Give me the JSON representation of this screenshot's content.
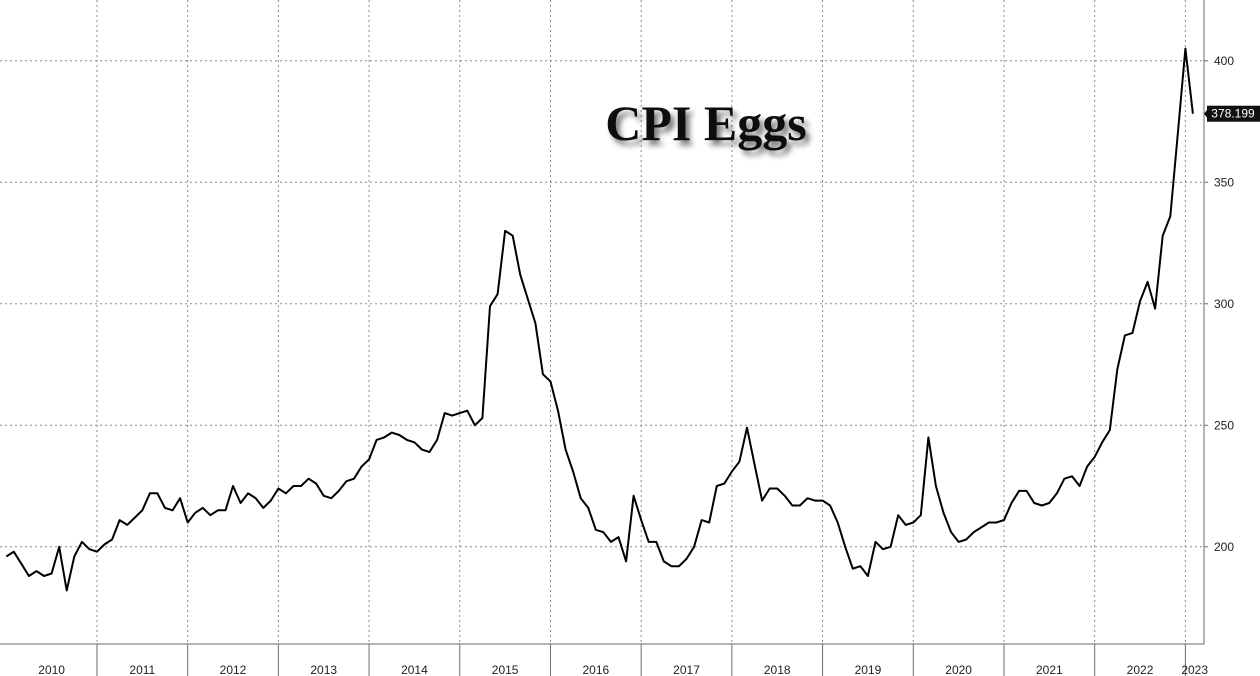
{
  "chart_data": {
    "type": "line",
    "title": "CPI Eggs",
    "xlabel": "",
    "ylabel": "",
    "x_tick_labels": [
      "2010",
      "2011",
      "2012",
      "2013",
      "2014",
      "2015",
      "2016",
      "2017",
      "2018",
      "2019",
      "2020",
      "2021",
      "2022",
      "2023"
    ],
    "y_ticks": [
      200,
      250,
      300,
      350,
      400
    ],
    "ylim": [
      160,
      425
    ],
    "xlim": [
      "2010-01",
      "2023-05"
    ],
    "grid": true,
    "last_value_label": "378.199",
    "colors": {
      "line": "#000000",
      "grid": "#8a8a8a",
      "last_label_bg": "#111111"
    },
    "series": [
      {
        "values": [
          [
            "2010-01",
            196
          ],
          [
            "2010-02",
            198
          ],
          [
            "2010-03",
            193
          ],
          [
            "2010-04",
            188
          ],
          [
            "2010-05",
            190
          ],
          [
            "2010-06",
            188
          ],
          [
            "2010-07",
            189
          ],
          [
            "2010-08",
            200
          ],
          [
            "2010-09",
            182
          ],
          [
            "2010-10",
            196
          ],
          [
            "2010-11",
            202
          ],
          [
            "2010-12",
            199
          ],
          [
            "2011-01",
            198
          ],
          [
            "2011-02",
            201
          ],
          [
            "2011-03",
            203
          ],
          [
            "2011-04",
            211
          ],
          [
            "2011-05",
            209
          ],
          [
            "2011-06",
            212
          ],
          [
            "2011-07",
            215
          ],
          [
            "2011-08",
            222
          ],
          [
            "2011-09",
            222
          ],
          [
            "2011-10",
            216
          ],
          [
            "2011-11",
            215
          ],
          [
            "2011-12",
            220
          ],
          [
            "2012-01",
            210
          ],
          [
            "2012-02",
            214
          ],
          [
            "2012-03",
            216
          ],
          [
            "2012-04",
            213
          ],
          [
            "2012-05",
            215
          ],
          [
            "2012-06",
            215
          ],
          [
            "2012-07",
            225
          ],
          [
            "2012-08",
            218
          ],
          [
            "2012-09",
            222
          ],
          [
            "2012-10",
            220
          ],
          [
            "2012-11",
            216
          ],
          [
            "2012-12",
            219
          ],
          [
            "2013-01",
            224
          ],
          [
            "2013-02",
            222
          ],
          [
            "2013-03",
            225
          ],
          [
            "2013-04",
            225
          ],
          [
            "2013-05",
            228
          ],
          [
            "2013-06",
            226
          ],
          [
            "2013-07",
            221
          ],
          [
            "2013-08",
            220
          ],
          [
            "2013-09",
            223
          ],
          [
            "2013-10",
            227
          ],
          [
            "2013-11",
            228
          ],
          [
            "2013-12",
            233
          ],
          [
            "2014-01",
            236
          ],
          [
            "2014-02",
            244
          ],
          [
            "2014-03",
            245
          ],
          [
            "2014-04",
            247
          ],
          [
            "2014-05",
            246
          ],
          [
            "2014-06",
            244
          ],
          [
            "2014-07",
            243
          ],
          [
            "2014-08",
            240
          ],
          [
            "2014-09",
            239
          ],
          [
            "2014-10",
            244
          ],
          [
            "2014-11",
            255
          ],
          [
            "2014-12",
            254
          ],
          [
            "2015-01",
            255
          ],
          [
            "2015-02",
            256
          ],
          [
            "2015-03",
            250
          ],
          [
            "2015-04",
            253
          ],
          [
            "2015-05",
            299
          ],
          [
            "2015-06",
            304
          ],
          [
            "2015-07",
            330
          ],
          [
            "2015-08",
            328
          ],
          [
            "2015-09",
            312
          ],
          [
            "2015-10",
            302
          ],
          [
            "2015-11",
            292
          ],
          [
            "2015-12",
            271
          ],
          [
            "2016-01",
            268
          ],
          [
            "2016-02",
            256
          ],
          [
            "2016-03",
            240
          ],
          [
            "2016-04",
            231
          ],
          [
            "2016-05",
            220
          ],
          [
            "2016-06",
            216
          ],
          [
            "2016-07",
            207
          ],
          [
            "2016-08",
            206
          ],
          [
            "2016-09",
            202
          ],
          [
            "2016-10",
            204
          ],
          [
            "2016-11",
            194
          ],
          [
            "2016-12",
            221
          ],
          [
            "2017-01",
            211
          ],
          [
            "2017-02",
            202
          ],
          [
            "2017-03",
            202
          ],
          [
            "2017-04",
            194
          ],
          [
            "2017-05",
            192
          ],
          [
            "2017-06",
            192
          ],
          [
            "2017-07",
            195
          ],
          [
            "2017-08",
            200
          ],
          [
            "2017-09",
            211
          ],
          [
            "2017-10",
            210
          ],
          [
            "2017-11",
            225
          ],
          [
            "2017-12",
            226
          ],
          [
            "2018-01",
            231
          ],
          [
            "2018-02",
            235
          ],
          [
            "2018-03",
            249
          ],
          [
            "2018-04",
            234
          ],
          [
            "2018-05",
            219
          ],
          [
            "2018-06",
            224
          ],
          [
            "2018-07",
            224
          ],
          [
            "2018-08",
            221
          ],
          [
            "2018-09",
            217
          ],
          [
            "2018-10",
            217
          ],
          [
            "2018-11",
            220
          ],
          [
            "2018-12",
            219
          ],
          [
            "2019-01",
            219
          ],
          [
            "2019-02",
            217
          ],
          [
            "2019-03",
            210
          ],
          [
            "2019-04",
            200
          ],
          [
            "2019-05",
            191
          ],
          [
            "2019-06",
            192
          ],
          [
            "2019-07",
            188
          ],
          [
            "2019-08",
            202
          ],
          [
            "2019-09",
            199
          ],
          [
            "2019-10",
            200
          ],
          [
            "2019-11",
            213
          ],
          [
            "2019-12",
            209
          ],
          [
            "2020-01",
            210
          ],
          [
            "2020-02",
            213
          ],
          [
            "2020-03",
            245
          ],
          [
            "2020-04",
            225
          ],
          [
            "2020-05",
            214
          ],
          [
            "2020-06",
            206
          ],
          [
            "2020-07",
            202
          ],
          [
            "2020-08",
            203
          ],
          [
            "2020-09",
            206
          ],
          [
            "2020-10",
            208
          ],
          [
            "2020-11",
            210
          ],
          [
            "2020-12",
            210
          ],
          [
            "2021-01",
            211
          ],
          [
            "2021-02",
            218
          ],
          [
            "2021-03",
            223
          ],
          [
            "2021-04",
            223
          ],
          [
            "2021-05",
            218
          ],
          [
            "2021-06",
            217
          ],
          [
            "2021-07",
            218
          ],
          [
            "2021-08",
            222
          ],
          [
            "2021-09",
            228
          ],
          [
            "2021-10",
            229
          ],
          [
            "2021-11",
            225
          ],
          [
            "2021-12",
            233
          ],
          [
            "2022-01",
            237
          ],
          [
            "2022-02",
            243
          ],
          [
            "2022-03",
            248
          ],
          [
            "2022-04",
            273
          ],
          [
            "2022-05",
            287
          ],
          [
            "2022-06",
            288
          ],
          [
            "2022-07",
            301
          ],
          [
            "2022-08",
            309
          ],
          [
            "2022-09",
            298
          ],
          [
            "2022-10",
            328
          ],
          [
            "2022-11",
            336
          ],
          [
            "2022-12",
            370
          ],
          [
            "2023-01",
            405
          ],
          [
            "2023-02",
            378.199
          ]
        ]
      }
    ]
  }
}
